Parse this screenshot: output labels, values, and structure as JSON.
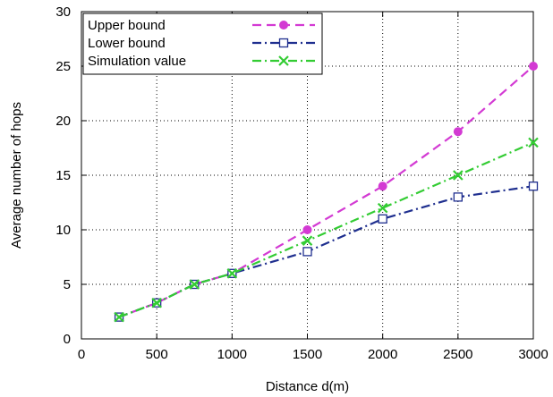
{
  "chart_data": {
    "type": "line",
    "title": "",
    "xlabel": "Distance d(m)",
    "ylabel": "Average number of hops",
    "xlim": [
      0,
      3000
    ],
    "ylim": [
      0,
      30
    ],
    "xticks": [
      0,
      500,
      1000,
      1500,
      2000,
      2500,
      3000
    ],
    "yticks": [
      0,
      5,
      10,
      15,
      20,
      25,
      30
    ],
    "grid": true,
    "legend_position": "top-left",
    "series": [
      {
        "name": "Upper bound",
        "color": "#d33ad3",
        "marker": "filled-circle",
        "line_style": "dashed",
        "x": [
          250,
          500,
          750,
          1000,
          1500,
          2000,
          2500,
          3000
        ],
        "y": [
          2,
          3.3,
          5,
          6,
          10,
          14,
          19,
          25
        ]
      },
      {
        "name": "Lower bound",
        "color": "#1f2f8f",
        "marker": "open-square",
        "line_style": "dash-dot",
        "x": [
          250,
          500,
          750,
          1000,
          1500,
          2000,
          2500,
          3000
        ],
        "y": [
          2,
          3.3,
          5,
          6,
          8,
          11,
          13,
          14
        ]
      },
      {
        "name": "Simulation value",
        "color": "#33cc33",
        "marker": "cross",
        "line_style": "dash-dot",
        "x": [
          250,
          500,
          750,
          1000,
          1500,
          2000,
          2500,
          3000
        ],
        "y": [
          2,
          3.3,
          5,
          6,
          9,
          12,
          15,
          18
        ]
      }
    ]
  }
}
